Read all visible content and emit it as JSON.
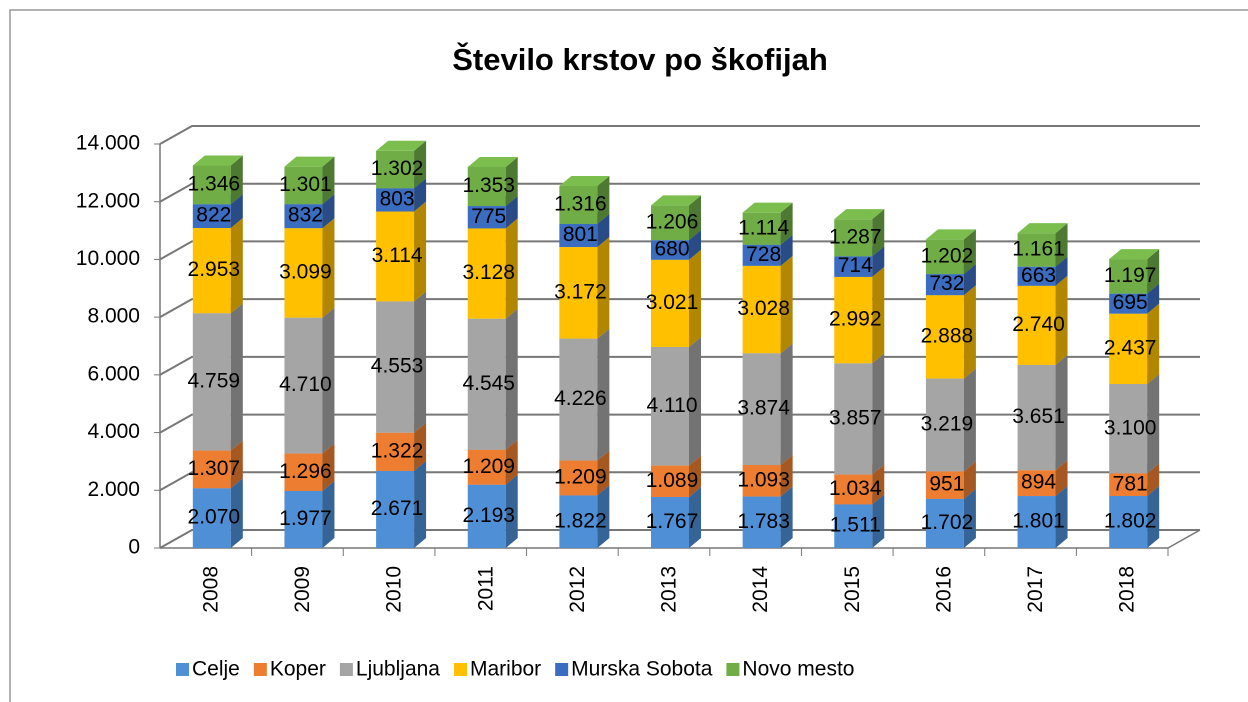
{
  "chart_data": {
    "type": "bar3d-stacked",
    "title": "Število krstov po škofijah",
    "categories": [
      "2008",
      "2009",
      "2010",
      "2011",
      "2012",
      "2013",
      "2014",
      "2015",
      "2016",
      "2017",
      "2018"
    ],
    "series": [
      {
        "name": "Celje",
        "color": "#4f8fd6",
        "values": [
          2070,
          1977,
          2671,
          2193,
          1822,
          1767,
          1783,
          1511,
          1702,
          1801,
          1802
        ],
        "value_labels": [
          "2.070",
          "1.977",
          "2.671",
          "2.193",
          "1.822",
          "1.767",
          "1.783",
          "1.511",
          "1.702",
          "1.801",
          "1.802"
        ]
      },
      {
        "name": "Koper",
        "color": "#ed7d31",
        "values": [
          1307,
          1296,
          1322,
          1209,
          1209,
          1089,
          1093,
          1034,
          951,
          894,
          781
        ],
        "value_labels": [
          "1.307",
          "1.296",
          "1.322",
          "1.209",
          "1.209",
          "1.089",
          "1.093",
          "1.034",
          "951",
          "894",
          "781"
        ]
      },
      {
        "name": "Ljubljana",
        "color": "#a5a5a5",
        "values": [
          4759,
          4710,
          4553,
          4545,
          4226,
          4110,
          3874,
          3857,
          3219,
          3651,
          3100
        ],
        "value_labels": [
          "4.759",
          "4.710",
          "4.553",
          "4.545",
          "4.226",
          "4.110",
          "3.874",
          "3.857",
          "3.219",
          "3.651",
          "3.100"
        ]
      },
      {
        "name": "Maribor",
        "color": "#ffc000",
        "values": [
          2953,
          3099,
          3114,
          3128,
          3172,
          3021,
          3028,
          2992,
          2888,
          2740,
          2437
        ],
        "value_labels": [
          "2.953",
          "3.099",
          "3.114",
          "3.128",
          "3.172",
          "3.021",
          "3.028",
          "2.992",
          "2.888",
          "2.740",
          "2.437"
        ]
      },
      {
        "name": "Murska Sobota",
        "color": "#3a6cc0",
        "values": [
          822,
          832,
          803,
          775,
          801,
          680,
          728,
          714,
          732,
          663,
          695
        ],
        "value_labels": [
          "822",
          "832",
          "803",
          "775",
          "801",
          "680",
          "728",
          "714",
          "732",
          "663",
          "695"
        ]
      },
      {
        "name": "Novo mesto",
        "color": "#70ad47",
        "values": [
          1346,
          1301,
          1302,
          1353,
          1316,
          1206,
          1114,
          1287,
          1202,
          1161,
          1197
        ],
        "value_labels": [
          "1.346",
          "1.301",
          "1.302",
          "1.353",
          "1.316",
          "1.206",
          "1.114",
          "1.287",
          "1.202",
          "1.161",
          "1.197"
        ]
      }
    ],
    "ylim": [
      0,
      14000
    ],
    "yticks": [
      0,
      {
        "value": 2000,
        "label": "2.000"
      },
      {
        "value": 4000,
        "label": "4.000"
      },
      {
        "value": 6000,
        "label": "6.000"
      },
      {
        "value": 8000,
        "label": "8.000"
      },
      {
        "value": 10000,
        "label": "10.000"
      },
      {
        "value": 12000,
        "label": "12.000"
      },
      {
        "value": 14000,
        "label": "14.000"
      }
    ],
    "grid": true,
    "legend": "bottom"
  }
}
